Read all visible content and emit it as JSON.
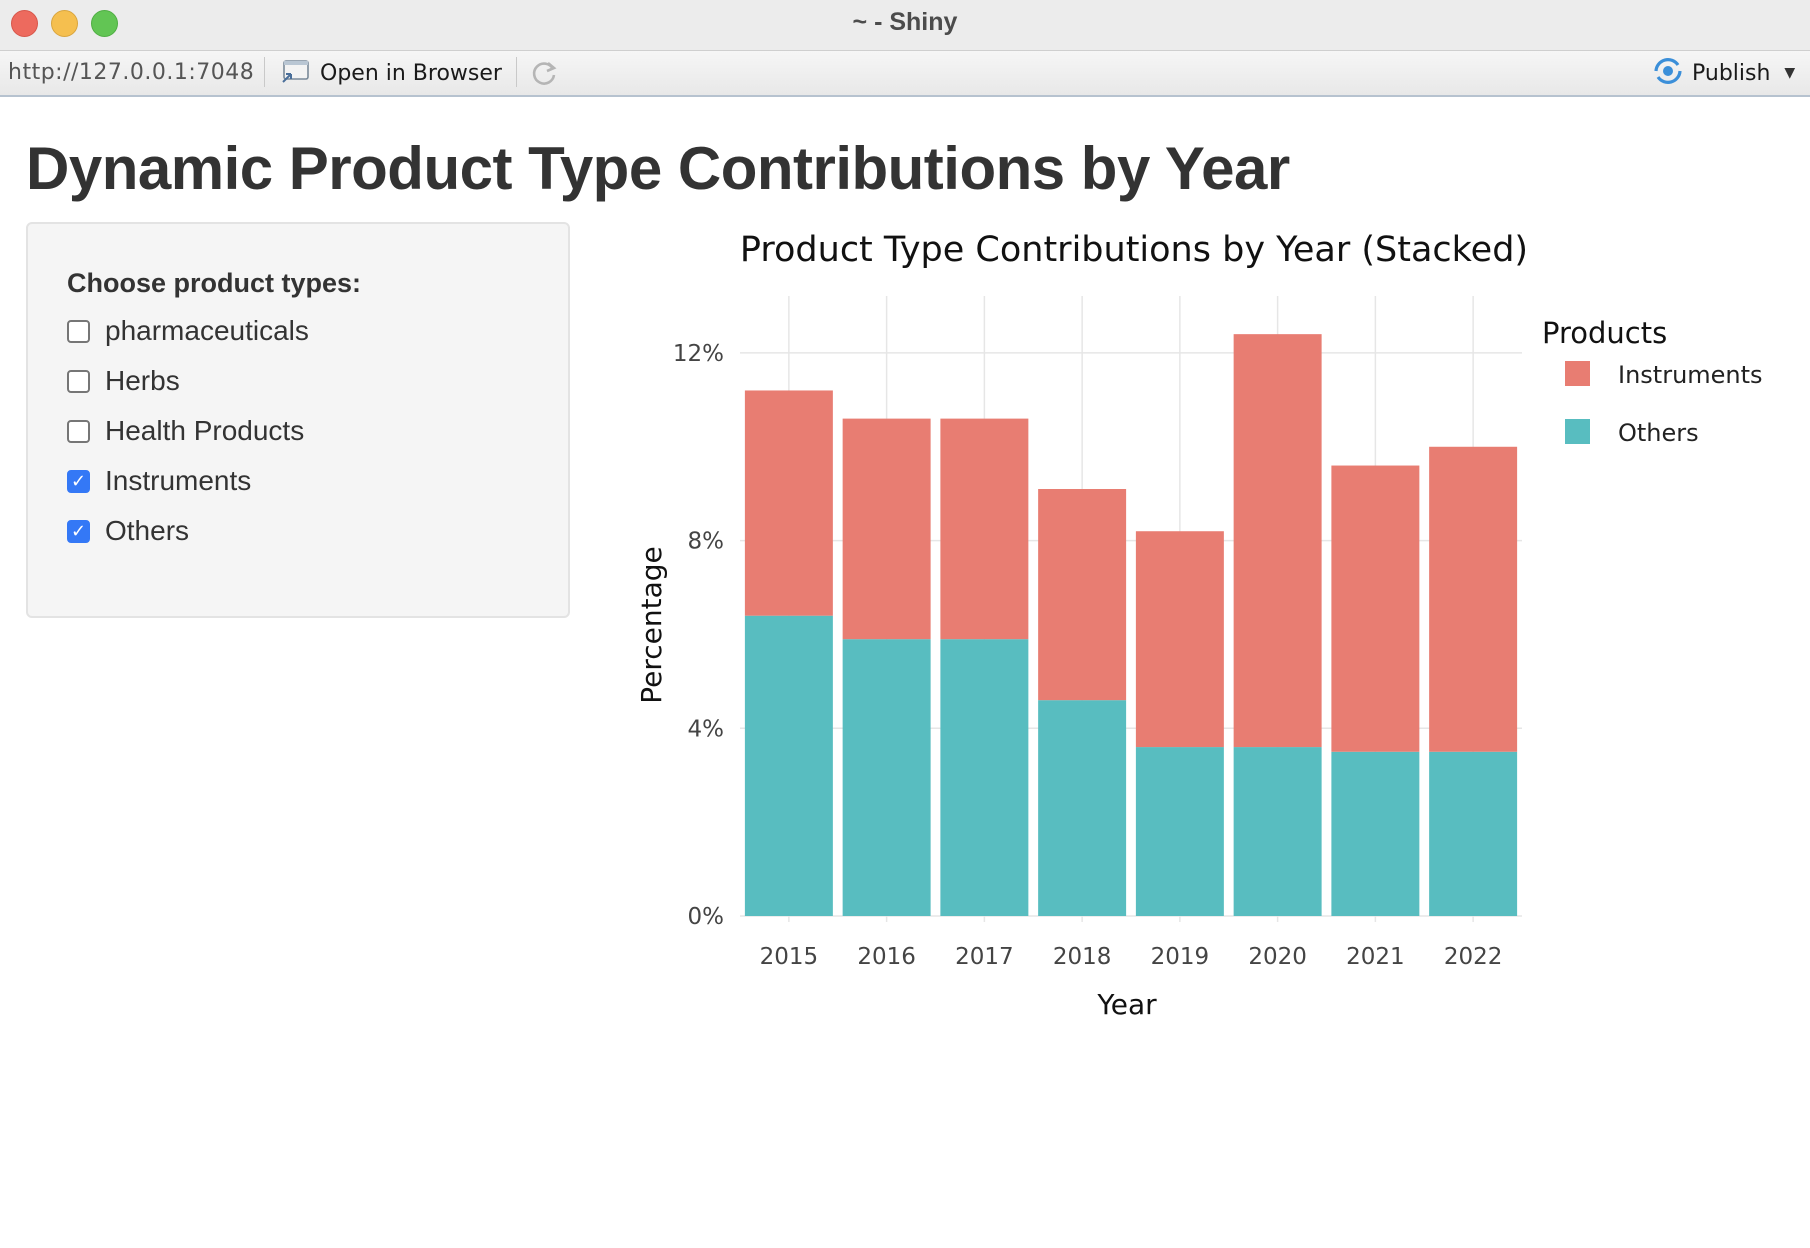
{
  "window": {
    "title": "~ - Shiny"
  },
  "toolbar": {
    "url": "http://127.0.0.1:7048",
    "open_in_browser": "Open in Browser",
    "publish": "Publish"
  },
  "page": {
    "title": "Dynamic Product Type Contributions by Year"
  },
  "sidebar": {
    "label": "Choose product types:",
    "options": [
      {
        "label": "pharmaceuticals",
        "checked": false
      },
      {
        "label": "Herbs",
        "checked": false
      },
      {
        "label": "Health Products",
        "checked": false
      },
      {
        "label": "Instruments",
        "checked": true
      },
      {
        "label": "Others",
        "checked": true
      }
    ]
  },
  "chart_data": {
    "type": "bar",
    "stacked": true,
    "title": "Product Type Contributions by Year (Stacked)",
    "xlabel": "Year",
    "ylabel": "Percentage",
    "categories": [
      "2015",
      "2016",
      "2017",
      "2018",
      "2019",
      "2020",
      "2021",
      "2022"
    ],
    "series": [
      {
        "name": "Others",
        "color": "#58bdc0",
        "values": [
          6.4,
          5.9,
          5.9,
          4.6,
          3.6,
          3.6,
          3.5,
          3.5
        ]
      },
      {
        "name": "Instruments",
        "color": "#e87d72",
        "values": [
          4.8,
          4.7,
          4.7,
          4.5,
          4.6,
          8.8,
          6.1,
          6.5
        ]
      }
    ],
    "ylim": [
      0,
      13
    ],
    "yticks": [
      0,
      4,
      8,
      12
    ],
    "ytick_labels": [
      "0%",
      "4%",
      "8%",
      "12%"
    ],
    "grid": true,
    "legend": {
      "title": "Products",
      "position": "right",
      "entries": [
        "Instruments",
        "Others"
      ]
    }
  }
}
